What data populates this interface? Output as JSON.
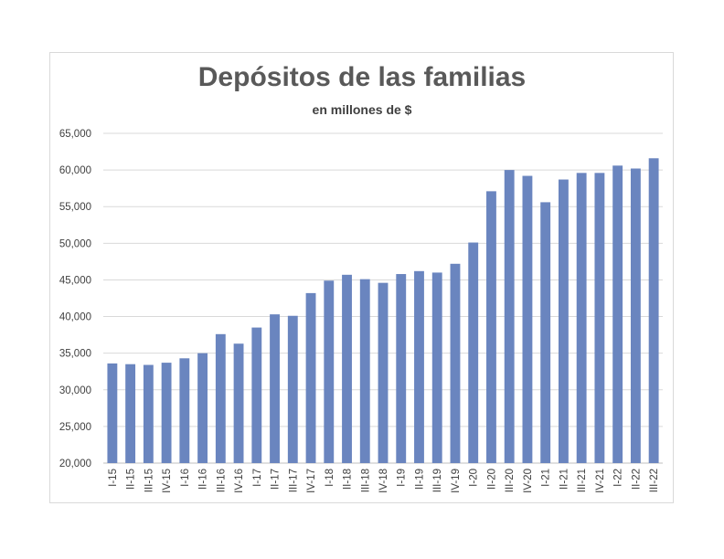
{
  "chart_data": {
    "type": "bar",
    "title": "Depósitos de las familias",
    "subtitle": "en millones de $",
    "xlabel": "",
    "ylabel": "",
    "ylim": [
      20000,
      65000
    ],
    "yticks": [
      "20,000",
      "25,000",
      "30,000",
      "35,000",
      "40,000",
      "45,000",
      "50,000",
      "55,000",
      "60,000",
      "65,000"
    ],
    "ytick_values": [
      20000,
      25000,
      30000,
      35000,
      40000,
      45000,
      50000,
      55000,
      60000,
      65000
    ],
    "grid": true,
    "bar_color": "#6a85bf",
    "categories": [
      "I-15",
      "II-15",
      "III-15",
      "IV-15",
      "I-16",
      "II-16",
      "III-16",
      "IV-16",
      "I-17",
      "II-17",
      "III-17",
      "IV-17",
      "I-18",
      "II-18",
      "III-18",
      "IV-18",
      "I-19",
      "II-19",
      "III-19",
      "IV-19",
      "I-20",
      "II-20",
      "III-20",
      "IV-20",
      "I-21",
      "II-21",
      "III-21",
      "IV-21",
      "I-22",
      "II-22",
      "III-22"
    ],
    "values": [
      33600,
      33500,
      33400,
      33700,
      34300,
      35000,
      37600,
      36300,
      38500,
      40300,
      40100,
      43200,
      44900,
      45700,
      45100,
      44600,
      45800,
      46200,
      46000,
      47200,
      50100,
      57100,
      60000,
      59200,
      55600,
      58700,
      59600,
      59600,
      60600,
      60200,
      61600
    ]
  }
}
